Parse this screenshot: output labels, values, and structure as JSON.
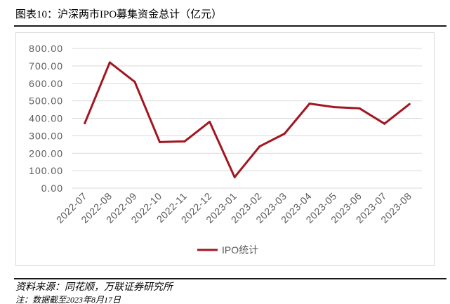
{
  "header": {
    "title": "图表10：沪深两市IPO募集资金总计（亿元）"
  },
  "chart_data": {
    "type": "line",
    "categories": [
      "2022-07",
      "2022-08",
      "2022-09",
      "2022-10",
      "2022-11",
      "2022-12",
      "2023-01",
      "2023-02",
      "2023-03",
      "2023-04",
      "2023-05",
      "2023-06",
      "2023-07",
      "2023-08"
    ],
    "series": [
      {
        "name": "IPO统计",
        "values": [
          372,
          720,
          609,
          264,
          268,
          380,
          63,
          239,
          312,
          484,
          464,
          457,
          369,
          481
        ],
        "color": "#a31621"
      }
    ],
    "ylim": [
      0,
      800
    ],
    "yticks": [
      0,
      100,
      200,
      300,
      400,
      500,
      600,
      700,
      800
    ],
    "ytick_labels": [
      "0.00",
      "100.00",
      "200.00",
      "300.00",
      "400.00",
      "500.00",
      "600.00",
      "700.00",
      "800.00"
    ],
    "grid": "horizontal",
    "grid_color": "#d9d9d9",
    "legend_position": "bottom"
  },
  "footer": {
    "source": "资料来源：同花顺，万联证券研究所",
    "note": "注：数据截至2023年8月17日"
  }
}
